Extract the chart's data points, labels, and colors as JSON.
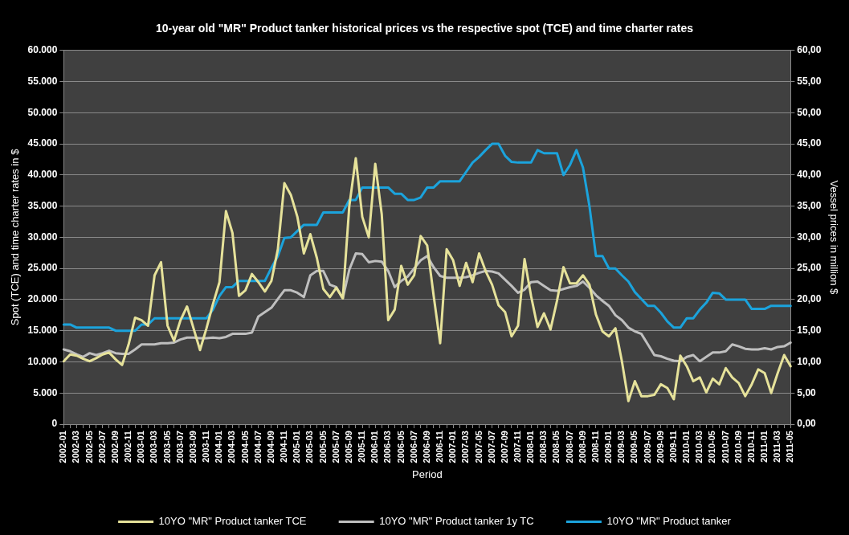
{
  "chart_data": {
    "type": "line",
    "title": "10-year old \"MR\" Product tanker historical prices vs the respective spot (TCE) and time charter rates",
    "xlabel": "Period",
    "ylabel": "Spot (TCE) and time charter rates in $",
    "y2label": "Vessel prices in million $",
    "categories": [
      "2002-01",
      null,
      "2002-03",
      null,
      "2002-05",
      null,
      "2002-07",
      null,
      "2002-09",
      null,
      "2002-11",
      null,
      "2003-01",
      null,
      "2003-03",
      null,
      "2003-05",
      null,
      "2003-07",
      null,
      "2003-09",
      null,
      "2003-11",
      null,
      "2004-01",
      null,
      "2004-03",
      null,
      "2004-05",
      null,
      "2004-07",
      null,
      "2004-09",
      null,
      "2004-11",
      null,
      "2005-01",
      null,
      "2005-03",
      null,
      "2005-05",
      null,
      "2005-07",
      null,
      "2005-09",
      null,
      "2005-11",
      null,
      "2006-01",
      null,
      "2006-03",
      null,
      "2006-05",
      null,
      "2006-07",
      null,
      "2006-09",
      null,
      "2006-11",
      null,
      "2007-01",
      null,
      "2007-03",
      null,
      "2007-05",
      null,
      "2007-07",
      null,
      "2007-09",
      null,
      "2007-11",
      null,
      "2008-01",
      null,
      "2008-03",
      null,
      "2008-05",
      null,
      "2008-07",
      null,
      "2008-09",
      null,
      "2008-11",
      null,
      "2009-01",
      null,
      "2009-03",
      null,
      "2009-05",
      null,
      "2009-07",
      null,
      "2009-09",
      null,
      "2009-11",
      null,
      "2010-01",
      null,
      "2010-03",
      null,
      "2010-05",
      null,
      "2010-07",
      null,
      "2010-09",
      null,
      "2010-11",
      null,
      "2011-01",
      null,
      "2011-03",
      null,
      "2011-05"
    ],
    "series": [
      {
        "name": "10YO \"MR\" Product tanker TCE",
        "color": "#e6e29a",
        "values": [
          10100,
          11200,
          11000,
          10500,
          10100,
          10600,
          11200,
          11500,
          10400,
          9500,
          12800,
          17100,
          16700,
          15800,
          23900,
          26000,
          15800,
          13400,
          16700,
          18900,
          15400,
          11900,
          15400,
          19300,
          22800,
          34200,
          30700,
          20600,
          21500,
          24100,
          22800,
          21300,
          23000,
          28100,
          38700,
          36800,
          33300,
          27400,
          30500,
          26700,
          21700,
          20400,
          21900,
          20200,
          35000,
          42700,
          33300,
          30000,
          41800,
          33700,
          16700,
          18400,
          25400,
          22400,
          23900,
          30200,
          28700,
          20600,
          13000,
          28100,
          26300,
          22200,
          25900,
          22800,
          27400,
          24600,
          22400,
          19100,
          18000,
          14100,
          15800,
          26500,
          20600,
          15600,
          17800,
          15200,
          19800,
          25200,
          22600,
          22600,
          23900,
          22400,
          17600,
          14900,
          14100,
          15400,
          10100,
          3700,
          6900,
          4500,
          4500,
          4700,
          6400,
          5800,
          4000,
          11000,
          9300,
          6900,
          7500,
          5100,
          7300,
          6400,
          9000,
          7500,
          6600,
          4500,
          6400,
          8800,
          8200,
          5000,
          8200,
          11100,
          9300
        ]
      },
      {
        "name": "10YO \"MR\" Product tanker 1y TC",
        "color": "#bfbfbf",
        "values": [
          12000,
          11700,
          11200,
          10800,
          11400,
          11100,
          11400,
          11800,
          11400,
          11300,
          11300,
          12000,
          12800,
          12800,
          12800,
          13000,
          13000,
          13100,
          13600,
          13900,
          13900,
          13800,
          13800,
          13900,
          13800,
          14000,
          14500,
          14500,
          14500,
          14700,
          17300,
          18000,
          18700,
          20100,
          21500,
          21500,
          21100,
          20400,
          23900,
          24600,
          24600,
          22400,
          22000,
          20200,
          24800,
          27400,
          27300,
          26000,
          26200,
          26100,
          24600,
          22000,
          23000,
          23700,
          25000,
          26300,
          27000,
          25200,
          23800,
          23500,
          23500,
          23500,
          23600,
          23900,
          24300,
          24600,
          24500,
          24200,
          23200,
          22200,
          21100,
          21600,
          22800,
          22900,
          22200,
          21500,
          21400,
          21700,
          22000,
          22200,
          22900,
          21900,
          20700,
          19800,
          19000,
          17500,
          16700,
          15500,
          14900,
          14500,
          12800,
          11100,
          10900,
          10500,
          10200,
          10100,
          10800,
          11100,
          10100,
          10800,
          11500,
          11500,
          11700,
          12800,
          12500,
          12100,
          12000,
          12000,
          12200,
          12000,
          12400,
          12500,
          13100
        ]
      },
      {
        "name": "10YO \"MR\" Product tanker",
        "color": "#1ba3dc",
        "axis": "y2",
        "values": [
          16.0,
          16.0,
          15.5,
          15.5,
          15.5,
          15.5,
          15.5,
          15.5,
          15.0,
          15.0,
          15.0,
          15.0,
          16.0,
          16.0,
          17.0,
          17.0,
          17.0,
          17.0,
          17.0,
          17.0,
          17.0,
          17.0,
          17.0,
          18.4,
          20.6,
          22.0,
          22.0,
          23.0,
          23.0,
          23.0,
          23.0,
          23.0,
          25.1,
          27.0,
          29.9,
          30.0,
          31.0,
          32.0,
          32.0,
          32.0,
          34.0,
          34.0,
          34.0,
          34.0,
          36.0,
          36.0,
          38.0,
          38.0,
          38.0,
          38.0,
          38.0,
          37.0,
          37.0,
          36.0,
          36.0,
          36.4,
          38.0,
          38.0,
          39.0,
          39.0,
          39.0,
          39.0,
          40.5,
          42.0,
          42.9,
          44.0,
          45.0,
          45.0,
          43.1,
          42.1,
          42.0,
          42.0,
          42.0,
          44.0,
          43.5,
          43.5,
          43.5,
          40.0,
          41.6,
          44.0,
          41.2,
          35.0,
          27.0,
          27.0,
          25.0,
          25.0,
          23.9,
          22.9,
          21.2,
          20.1,
          19.0,
          19.0,
          17.9,
          16.5,
          15.5,
          15.5,
          17.0,
          17.0,
          18.4,
          19.5,
          21.1,
          21.0,
          20.0,
          20.0,
          20.0,
          20.0,
          18.5,
          18.5,
          18.5,
          19.0,
          19.0,
          19.0,
          19.0
        ]
      }
    ],
    "ylim": [
      0,
      60000
    ],
    "yticks": [
      0,
      {
        "value": 5000,
        "label": "5.000"
      },
      {
        "value": 10000,
        "label": "10.000"
      },
      {
        "value": 15000,
        "label": "15.000"
      },
      {
        "value": 20000,
        "label": "20.000"
      },
      {
        "value": 25000,
        "label": "25.000"
      },
      {
        "value": 30000,
        "label": "30.000"
      },
      {
        "value": 35000,
        "label": "35.000"
      },
      {
        "value": 40000,
        "label": "40.000"
      },
      {
        "value": 45000,
        "label": "45.000"
      },
      {
        "value": 50000,
        "label": "50.000"
      },
      {
        "value": 55000,
        "label": "55.000"
      },
      {
        "value": 60000,
        "label": "60.000"
      }
    ],
    "y2lim": [
      0,
      60
    ],
    "y2ticks": [
      {
        "value": 0,
        "label": "0,00"
      },
      {
        "value": 5,
        "label": "5,00"
      },
      {
        "value": 10,
        "label": "10,00"
      },
      {
        "value": 15,
        "label": "15,00"
      },
      {
        "value": 20,
        "label": "20,00"
      },
      {
        "value": 25,
        "label": "25,00"
      },
      {
        "value": 30,
        "label": "30,00"
      },
      {
        "value": 35,
        "label": "35,00"
      },
      {
        "value": 40,
        "label": "40,00"
      },
      {
        "value": 45,
        "label": "45,00"
      },
      {
        "value": 50,
        "label": "50,00"
      },
      {
        "value": 55,
        "label": "55,00"
      },
      {
        "value": 60,
        "label": "60,00"
      }
    ],
    "grid": "y",
    "legend": "bottom",
    "marker": "none"
  }
}
